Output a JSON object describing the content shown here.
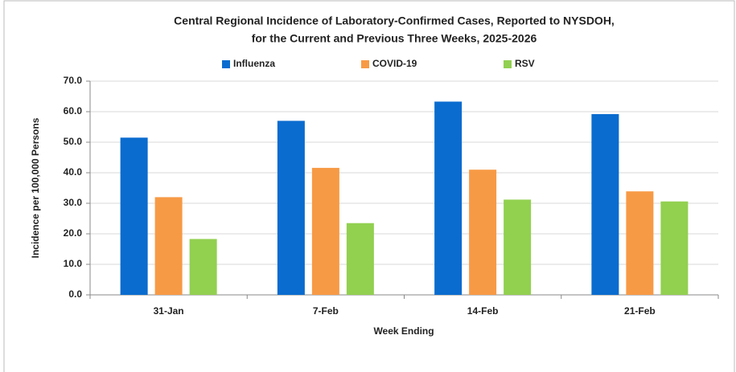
{
  "chart_data": {
    "type": "bar",
    "title": [
      "Central Regional Incidence of Laboratory-Confirmed Cases, Reported to NYSDOH,",
      "for the Current and Previous Three Weeks, 2025-2026"
    ],
    "x_label": "Week Ending",
    "y_label": "Incidence per 100,000 Persons",
    "categories": [
      "31-Jan",
      "7-Feb",
      "14-Feb",
      "21-Feb"
    ],
    "series": [
      {
        "name": "Influenza",
        "color": "#0a6ccf",
        "values": [
          51.5,
          57.0,
          63.3,
          59.2
        ]
      },
      {
        "name": "COVID-19",
        "color": "#f79a45",
        "values": [
          32.0,
          41.6,
          41.0,
          33.9
        ]
      },
      {
        "name": "RSV",
        "color": "#92d050",
        "values": [
          18.3,
          23.5,
          31.2,
          30.6
        ]
      }
    ],
    "ylim": [
      0,
      70
    ],
    "yticks": [
      {
        "value": 0,
        "label": "0.0"
      },
      {
        "value": 10,
        "label": "10.0"
      },
      {
        "value": 20,
        "label": "20.0"
      },
      {
        "value": 30,
        "label": "30.0"
      },
      {
        "value": 40,
        "label": "40.0"
      },
      {
        "value": 50,
        "label": "50.0"
      },
      {
        "value": 60,
        "label": "60.0"
      },
      {
        "value": 70,
        "label": "70.0"
      }
    ],
    "grid": true,
    "legend": "top"
  }
}
